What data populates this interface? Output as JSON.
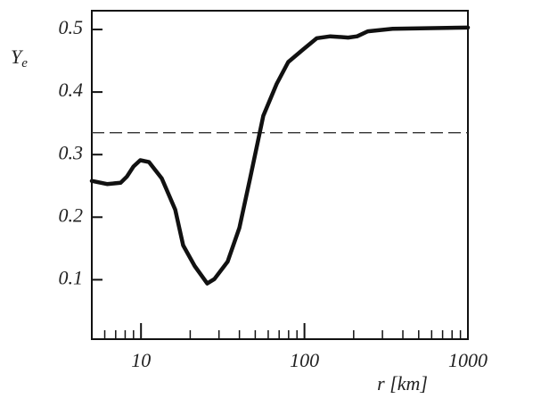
{
  "chart_data": {
    "type": "line",
    "ylabel": "Y",
    "ylabel_sub": "e",
    "xlabel": "r [km]",
    "xscale": "log",
    "xlim": [
      5,
      1000
    ],
    "ylim": [
      0.005,
      0.53
    ],
    "xticks": [
      10,
      100,
      1000
    ],
    "xminorticks": [
      6,
      7,
      8,
      9,
      20,
      30,
      40,
      50,
      60,
      70,
      80,
      90,
      200,
      300,
      400,
      500,
      600,
      700,
      800,
      900
    ],
    "yticks": [
      0.1,
      0.2,
      0.3,
      0.4,
      0.5
    ],
    "hline": 0.335,
    "color": "#111111",
    "x": [
      5,
      6.2,
      7.5,
      8.2,
      9.0,
      9.9,
      11.2,
      13.4,
      16.2,
      18.1,
      21.3,
      25.4,
      28.1,
      33.9,
      40.0,
      46.5,
      56.0,
      67.6,
      79.6,
      98,
      119,
      144,
      185,
      210,
      244,
      346,
      1000
    ],
    "values": [
      0.258,
      0.253,
      0.255,
      0.265,
      0.281,
      0.291,
      0.288,
      0.262,
      0.212,
      0.155,
      0.122,
      0.094,
      0.101,
      0.129,
      0.183,
      0.262,
      0.362,
      0.413,
      0.448,
      0.468,
      0.486,
      0.489,
      0.487,
      0.489,
      0.497,
      0.501,
      0.503
    ]
  }
}
